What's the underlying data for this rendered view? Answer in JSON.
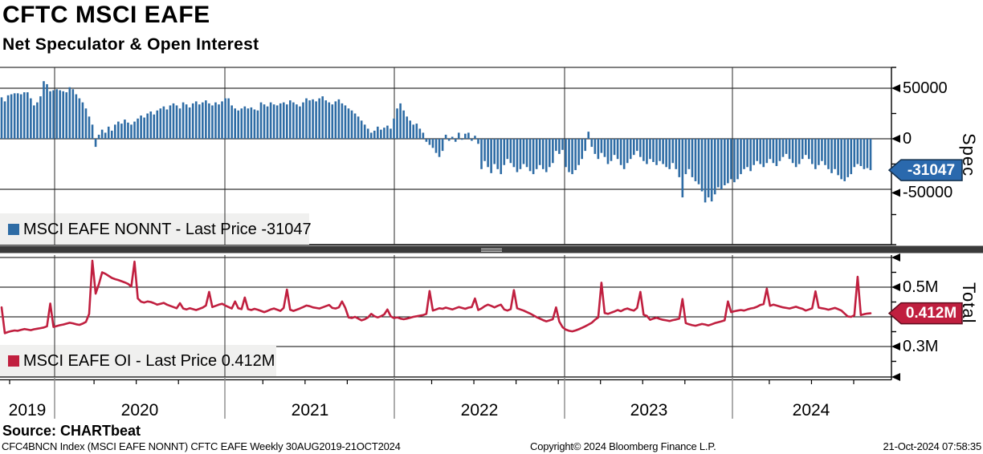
{
  "header": {
    "title": "CFTC MSCI EAFE",
    "subtitle": "Net Speculator & Open Interest"
  },
  "panels": {
    "spec": {
      "axis_title": "Spec",
      "legend": "MSCI EAFE NONNT - Last Price -31047",
      "last_price_label": "-31047",
      "ytick_labels": [
        "50000",
        "0",
        "-50000"
      ],
      "bar_color": "#2e6ca5",
      "bubble_color": "#2a69ad"
    },
    "total": {
      "axis_title": "Total",
      "legend": "MSCI EAFE OI - Last Price 0.412M",
      "last_price_label": "0.412M",
      "ytick_labels": [
        "0.5M",
        "0.3M"
      ],
      "line_color": "#c01f3f",
      "bubble_color": "#c01f3f"
    }
  },
  "x_axis": {
    "years": [
      "2019",
      "2020",
      "2021",
      "2022",
      "2023",
      "2024"
    ]
  },
  "footer": {
    "source": "Source: CHARTbeat",
    "footnote": "CFC4BNCN Index (MSCI EAFE NONNT) CFTC EAFE  Weekly 30AUG2019-21OCT2024",
    "copyright": "Copyright© 2024 Bloomberg Finance L.P.",
    "timestamp": "21-Oct-2024 07:58:35"
  },
  "chart_data": [
    {
      "type": "bar",
      "name": "MSCI EAFE NONNT",
      "panel": "Spec",
      "frequency": "Weekly",
      "start": "30AUG2019",
      "end": "21OCT2024",
      "last_price": -31047,
      "color": "#2e6ca5",
      "unit": "contracts (values in thousands)",
      "ylim": [
        -105000,
        71000
      ],
      "ytick_values": [
        50000,
        0,
        -50000
      ],
      "values_k": [
        41,
        37,
        43,
        44,
        45,
        45,
        44,
        46,
        46,
        40,
        33,
        36,
        42,
        57,
        54,
        47,
        48,
        49,
        48,
        47,
        46,
        51,
        49,
        44,
        40,
        36,
        30,
        22,
        14,
        -8,
        4,
        9,
        6,
        12,
        8,
        14,
        17,
        15,
        19,
        16,
        14,
        17,
        20,
        23,
        21,
        25,
        27,
        24,
        28,
        30,
        32,
        29,
        33,
        35,
        33,
        30,
        36,
        34,
        31,
        35,
        37,
        34,
        36,
        38,
        35,
        33,
        36,
        34,
        37,
        40,
        40,
        33,
        30,
        28,
        30,
        32,
        30,
        31,
        29,
        28,
        36,
        34,
        32,
        36,
        34,
        33,
        35,
        36,
        34,
        38,
        36,
        34,
        32,
        36,
        40,
        38,
        39,
        37,
        40,
        42,
        38,
        36,
        34,
        37,
        39,
        35,
        33,
        30,
        28,
        25,
        22,
        18,
        14,
        10,
        6,
        8,
        12,
        9,
        11,
        13,
        10,
        20,
        30,
        35,
        28,
        22,
        18,
        14,
        15,
        10,
        6,
        -3,
        -6,
        -9,
        -14,
        -18,
        -12,
        4,
        -2,
        2,
        -3,
        6,
        -1,
        5,
        6,
        -2,
        3,
        -5,
        -30,
        -22,
        -28,
        -34,
        -25,
        -30,
        -35,
        -26,
        -20,
        -24,
        -28,
        -33,
        -30,
        -25,
        -28,
        -32,
        -35,
        -30,
        -26,
        -30,
        -33,
        -28,
        -24,
        -12,
        -15,
        -11,
        -28,
        -33,
        -35,
        -31,
        -26,
        -20,
        -12,
        7,
        -8,
        -15,
        -20,
        -14,
        -18,
        -25,
        -22,
        -16,
        -20,
        -26,
        -30,
        -24,
        -20,
        -16,
        -12,
        -18,
        -22,
        -25,
        -20,
        -23,
        -26,
        -22,
        -25,
        -28,
        -30,
        -24,
        -30,
        -38,
        -58,
        -35,
        -30,
        -38,
        -42,
        -45,
        -52,
        -63,
        -58,
        -62,
        -55,
        -48,
        -50,
        -46,
        -44,
        -40,
        -43,
        -40,
        -35,
        -30,
        -28,
        -32,
        -26,
        -22,
        -25,
        -28,
        -24,
        -20,
        -24,
        -27,
        -22,
        -18,
        -15,
        -20,
        -24,
        -28,
        -25,
        -20,
        -16,
        -20,
        -25,
        -30,
        -26,
        -22,
        -26,
        -30,
        -34,
        -30,
        -36,
        -40,
        -42,
        -38,
        -35,
        -28,
        -25,
        -27,
        -30,
        -29,
        -31.047
      ]
    },
    {
      "type": "line",
      "name": "MSCI EAFE OI",
      "panel": "Total",
      "frequency": "Weekly",
      "start": "30AUG2019",
      "end": "21OCT2024",
      "last_price": 0.412,
      "color": "#c01f3f",
      "unit": "millions of contracts",
      "ylim": [
        0.197,
        0.609
      ],
      "ytick_values": [
        0.5,
        0.4,
        0.3
      ],
      "values": [
        0.432,
        0.345,
        0.349,
        0.352,
        0.354,
        0.353,
        0.356,
        0.359,
        0.357,
        0.355,
        0.358,
        0.36,
        0.362,
        0.364,
        0.368,
        0.445,
        0.366,
        0.369,
        0.372,
        0.374,
        0.377,
        0.38,
        0.378,
        0.375,
        0.373,
        0.377,
        0.383,
        0.41,
        0.589,
        0.478,
        0.51,
        0.55,
        0.545,
        0.538,
        0.531,
        0.527,
        0.524,
        0.52,
        0.516,
        0.511,
        0.502,
        0.586,
        0.462,
        0.451,
        0.448,
        0.452,
        0.45,
        0.446,
        0.441,
        0.444,
        0.447,
        0.441,
        0.437,
        0.433,
        0.429,
        0.446,
        0.428,
        0.425,
        0.429,
        0.426,
        0.423,
        0.427,
        0.431,
        0.438,
        0.484,
        0.433,
        0.437,
        0.441,
        0.444,
        0.438,
        0.433,
        0.428,
        0.452,
        0.429,
        0.426,
        0.465,
        0.426,
        0.423,
        0.427,
        0.424,
        0.42,
        0.416,
        0.42,
        0.425,
        0.428,
        0.424,
        0.42,
        0.43,
        0.492,
        0.424,
        0.42,
        0.424,
        0.428,
        0.433,
        0.438,
        0.436,
        0.432,
        0.43,
        0.428,
        0.432,
        0.436,
        0.44,
        0.43,
        0.428,
        0.432,
        0.452,
        0.43,
        0.398,
        0.396,
        0.4,
        0.394,
        0.388,
        0.392,
        0.398,
        0.41,
        0.402,
        0.398,
        0.402,
        0.408,
        0.425,
        0.402,
        0.396,
        0.398,
        0.394,
        0.392,
        0.394,
        0.397,
        0.4,
        0.402,
        0.404,
        0.406,
        0.41,
        0.487,
        0.421,
        0.425,
        0.429,
        0.427,
        0.431,
        0.428,
        0.425,
        0.429,
        0.433,
        0.43,
        0.427,
        0.431,
        0.433,
        0.462,
        0.423,
        0.428,
        0.436,
        0.441,
        0.437,
        0.432,
        0.437,
        0.441,
        0.425,
        0.421,
        0.426,
        0.49,
        0.429,
        0.425,
        0.421,
        0.416,
        0.411,
        0.405,
        0.399,
        0.394,
        0.389,
        0.385,
        0.388,
        0.392,
        0.432,
        0.384,
        0.365,
        0.357,
        0.353,
        0.351,
        0.354,
        0.358,
        0.363,
        0.368,
        0.374,
        0.38,
        0.39,
        0.398,
        0.515,
        0.413,
        0.41,
        0.414,
        0.418,
        0.423,
        0.419,
        0.425,
        0.428,
        0.424,
        0.421,
        0.43,
        0.484,
        0.407,
        0.403,
        0.39,
        0.394,
        0.397,
        0.393,
        0.39,
        0.388,
        0.386,
        0.389,
        0.391,
        0.394,
        0.46,
        0.379,
        0.375,
        0.372,
        0.37,
        0.373,
        0.376,
        0.374,
        0.371,
        0.375,
        0.379,
        0.382,
        0.385,
        0.388,
        0.452,
        0.416,
        0.419,
        0.421,
        0.423,
        0.421,
        0.425,
        0.428,
        0.43,
        0.434,
        0.44,
        0.443,
        0.495,
        0.437,
        0.441,
        0.438,
        0.435,
        0.432,
        0.43,
        0.428,
        0.431,
        0.434,
        0.43,
        0.427,
        0.421,
        0.425,
        0.429,
        0.486,
        0.431,
        0.429,
        0.427,
        0.424,
        0.427,
        0.43,
        0.426,
        0.421,
        0.411,
        0.401,
        0.4,
        0.405,
        0.535,
        0.406,
        0.409,
        0.411,
        0.412
      ]
    }
  ]
}
